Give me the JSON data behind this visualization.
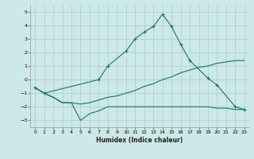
{
  "bg_color": "#cce8e8",
  "grid_color": "#aacccc",
  "line_color": "#1a7070",
  "xlabel": "Humidex (Indice chaleur)",
  "xlim": [
    -0.5,
    23.5
  ],
  "ylim": [
    -3.5,
    5.5
  ],
  "yticks": [
    -3,
    -2,
    -1,
    0,
    1,
    2,
    3,
    4,
    5
  ],
  "xticks": [
    0,
    1,
    2,
    3,
    4,
    5,
    6,
    7,
    8,
    9,
    10,
    11,
    12,
    13,
    14,
    15,
    16,
    17,
    18,
    19,
    20,
    21,
    22,
    23
  ],
  "curve_upper_x": [
    0,
    1,
    7,
    8,
    10,
    11,
    12,
    13,
    14,
    15,
    16,
    17,
    19,
    20,
    22,
    23
  ],
  "curve_upper_y": [
    -0.6,
    -1.0,
    0.0,
    1.0,
    2.1,
    3.0,
    3.5,
    3.9,
    4.8,
    3.9,
    2.6,
    1.4,
    0.1,
    -0.4,
    -2.0,
    -2.2
  ],
  "curve_mid_x": [
    0,
    1,
    2,
    3,
    4,
    5,
    6,
    7,
    8,
    9,
    10,
    11,
    12,
    13,
    14,
    15,
    16,
    17,
    18,
    19,
    20,
    21,
    22,
    23
  ],
  "curve_mid_y": [
    -0.6,
    -1.0,
    -1.3,
    -1.7,
    -1.7,
    -1.8,
    -1.7,
    -1.5,
    -1.3,
    -1.2,
    -1.0,
    -0.8,
    -0.5,
    -0.3,
    -0.0,
    0.2,
    0.5,
    0.7,
    0.9,
    1.0,
    1.2,
    1.3,
    1.4,
    1.4
  ],
  "curve_lower_x": [
    0,
    1,
    2,
    3,
    4,
    5,
    6,
    7,
    8,
    9,
    10,
    11,
    12,
    13,
    14,
    15,
    16,
    17,
    18,
    19,
    20,
    21,
    22,
    23
  ],
  "curve_lower_y": [
    -0.6,
    -1.0,
    -1.3,
    -1.7,
    -1.7,
    -3.0,
    -2.5,
    -2.3,
    -2.0,
    -2.0,
    -2.0,
    -2.0,
    -2.0,
    -2.0,
    -2.0,
    -2.0,
    -2.0,
    -2.0,
    -2.0,
    -2.0,
    -2.1,
    -2.1,
    -2.2,
    -2.2
  ]
}
